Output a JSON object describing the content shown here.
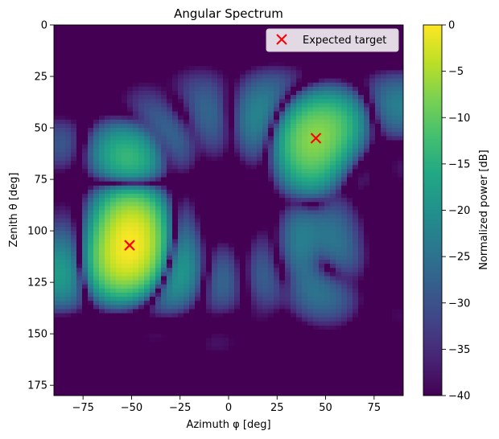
{
  "chart_data": {
    "type": "heatmap",
    "title": "Angular Spectrum",
    "xlabel": "Azimuth φ [deg]",
    "ylabel": "Zenith θ [deg]",
    "xlim": [
      -90,
      90
    ],
    "ylim": [
      180,
      0
    ],
    "x_ticks": [
      -75,
      -50,
      -25,
      0,
      25,
      50,
      75
    ],
    "x_tick_labels": [
      "−75",
      "−50",
      "−25",
      "0",
      "25",
      "50",
      "75"
    ],
    "y_ticks": [
      0,
      25,
      50,
      75,
      100,
      125,
      150,
      175
    ],
    "y_tick_labels": [
      "0",
      "25",
      "50",
      "75",
      "100",
      "125",
      "150",
      "175"
    ],
    "colorbar": {
      "label": "Normalized power [dB]",
      "range": [
        -40,
        0
      ],
      "colormap": "viridis",
      "ticks": [
        0,
        -5,
        -10,
        -15,
        -20,
        -25,
        -30,
        -35,
        -40
      ],
      "tick_labels": [
        "0",
        "−5",
        "−10",
        "−15",
        "−20",
        "−25",
        "−30",
        "−35",
        "−40"
      ]
    },
    "markers": [
      {
        "label": "Expected target",
        "points": [
          {
            "azimuth": -51,
            "zenith": 107
          },
          {
            "azimuth": 45,
            "zenith": 55
          }
        ],
        "color": "#ff0000",
        "marker": "x"
      }
    ],
    "sources": [
      {
        "azimuth": -51,
        "zenith": 107,
        "peak_db": 0
      },
      {
        "azimuth": 45,
        "zenith": 55,
        "peak_db": -7
      }
    ],
    "legend": {
      "position": "top-right",
      "entries": [
        "Expected target"
      ]
    },
    "grid": false
  }
}
